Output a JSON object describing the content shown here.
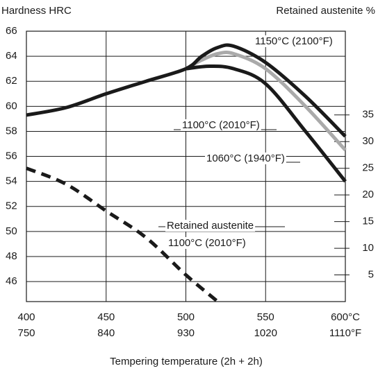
{
  "chart_data": {
    "type": "line",
    "ylabel": "Hardness HRC",
    "y2label": "Retained austenite %",
    "xlabel": "Tempering temperature (2h + 2h)",
    "xlim": [
      400,
      600
    ],
    "xticks": [
      400,
      450,
      500,
      550,
      {
        "value": 600,
        "label": "600°C"
      }
    ],
    "xticks_f": [
      {
        "value": 400,
        "label": "750"
      },
      {
        "value": 450,
        "label": "840"
      },
      {
        "value": 500,
        "label": "930"
      },
      {
        "value": 550,
        "label": "1020"
      },
      {
        "value": 600,
        "label": "1110°F"
      }
    ],
    "ylim": [
      44.4,
      66
    ],
    "yticks": [
      46,
      48,
      50,
      52,
      54,
      56,
      58,
      60,
      62,
      64,
      66
    ],
    "y2lim": [
      0,
      50.7
    ],
    "y2ticks": [
      5,
      10,
      15,
      20,
      25,
      30,
      35
    ],
    "grid": true,
    "series": [
      {
        "name": "1150°C (2100°F)",
        "color": "#1a1a1a",
        "x": [
          400,
          425,
          450,
          475,
          500,
          510,
          520,
          530,
          550,
          575,
          600
        ],
        "values": [
          59.3,
          59.9,
          61,
          62,
          63,
          64,
          64.7,
          64.8,
          63.5,
          60.8,
          57.6
        ]
      },
      {
        "name": "1100°C (2010°F)",
        "color": "#aaaaaa",
        "x": [
          500,
          510,
          520,
          530,
          550,
          575,
          600
        ],
        "values": [
          63,
          63.7,
          64.2,
          64.2,
          63,
          60,
          56.5
        ]
      },
      {
        "name": "1060°C (1940°F)",
        "color": "#1a1a1a",
        "x": [
          500,
          515,
          530,
          550,
          575,
          600
        ],
        "values": [
          63,
          63.2,
          63,
          61.8,
          58,
          54
        ]
      },
      {
        "name": "Retained austenite",
        "note": "1100°C (2010°F)",
        "color": "#1a1a1a",
        "dashed": true,
        "axis": "y2",
        "x": [
          400,
          425,
          450,
          475,
          500,
          520
        ],
        "values": [
          25,
          22,
          17,
          12,
          5,
          0
        ]
      }
    ]
  }
}
